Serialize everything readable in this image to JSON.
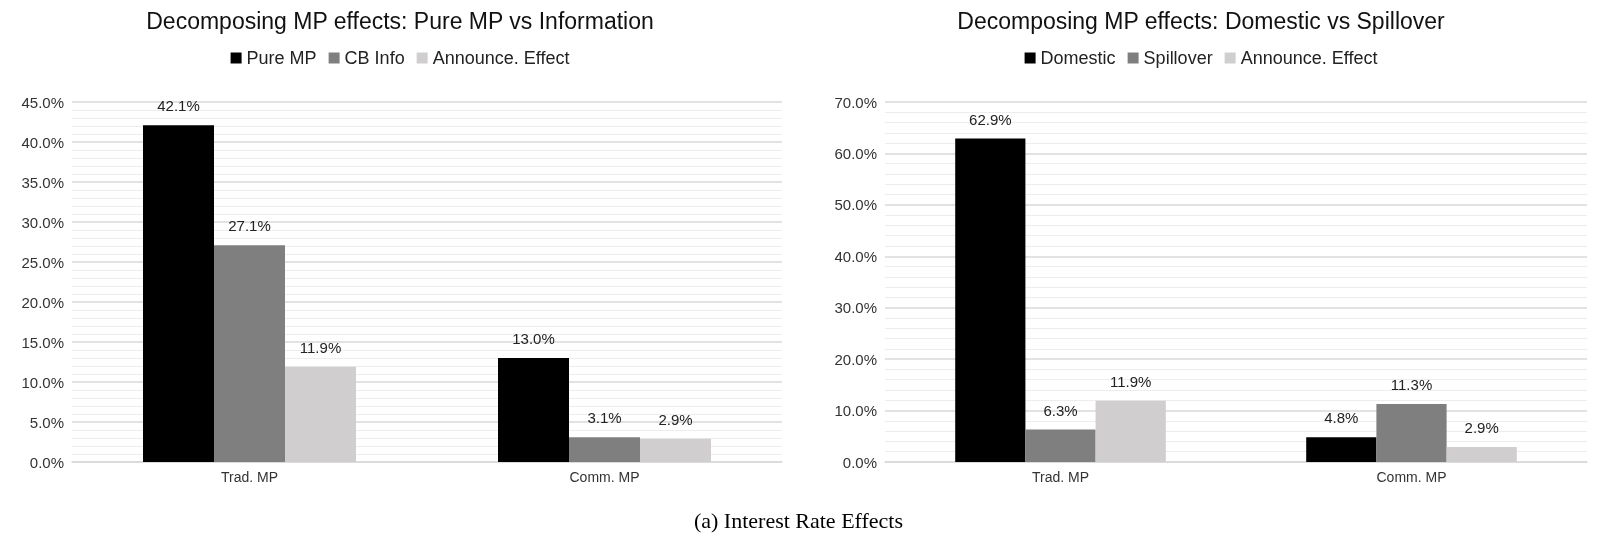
{
  "chart_data": [
    {
      "type": "bar",
      "title": "Decomposing MP effects: Pure MP vs Information",
      "categories": [
        "Trad. MP",
        "Comm. MP"
      ],
      "series": [
        {
          "name": "Pure MP",
          "color": "#000000",
          "values": [
            42.1,
            13.0
          ],
          "value_labels": [
            "42.1%",
            "13.0%"
          ]
        },
        {
          "name": "CB Info",
          "color": "#7f7f7f",
          "values": [
            27.1,
            3.1
          ],
          "value_labels": [
            "27.1%",
            "3.1%"
          ]
        },
        {
          "name": "Announce. Effect",
          "color": "#d0cece",
          "values": [
            11.9,
            2.9
          ],
          "value_labels": [
            "11.9%",
            "2.9%"
          ]
        }
      ],
      "ylim": [
        0,
        45
      ],
      "yticks": [
        {
          "value": 0,
          "label": "0.0%"
        },
        {
          "value": 5,
          "label": "5.0%"
        },
        {
          "value": 10,
          "label": "10.0%"
        },
        {
          "value": 15,
          "label": "15.0%"
        },
        {
          "value": 20,
          "label": "20.0%"
        },
        {
          "value": 25,
          "label": "25.0%"
        },
        {
          "value": 30,
          "label": "30.0%"
        },
        {
          "value": 35,
          "label": "35.0%"
        },
        {
          "value": 40,
          "label": "40.0%"
        },
        {
          "value": 45,
          "label": "45.0%"
        }
      ],
      "grid": "y",
      "legend": "top",
      "annotations": [
        "(a) Interest Rate Effects"
      ]
    },
    {
      "type": "bar",
      "title": "Decomposing MP effects: Domestic vs Spillover",
      "categories": [
        "Trad. MP",
        "Comm. MP"
      ],
      "series": [
        {
          "name": "Domestic",
          "color": "#000000",
          "values": [
            62.9,
            4.8
          ],
          "value_labels": [
            "62.9%",
            "4.8%"
          ]
        },
        {
          "name": "Spillover",
          "color": "#7f7f7f",
          "values": [
            6.3,
            11.3
          ],
          "value_labels": [
            "6.3%",
            "11.3%"
          ]
        },
        {
          "name": "Announce. Effect",
          "color": "#d0cece",
          "values": [
            11.9,
            2.9
          ],
          "value_labels": [
            "11.9%",
            "2.9%"
          ]
        }
      ],
      "ylim": [
        0,
        70
      ],
      "yticks": [
        {
          "value": 0,
          "label": "0.0%"
        },
        {
          "value": 10,
          "label": "10.0%"
        },
        {
          "value": 20,
          "label": "20.0%"
        },
        {
          "value": 30,
          "label": "30.0%"
        },
        {
          "value": 40,
          "label": "40.0%"
        },
        {
          "value": 50,
          "label": "50.0%"
        },
        {
          "value": 60,
          "label": "60.0%"
        },
        {
          "value": 70,
          "label": "70.0%"
        }
      ],
      "grid": "y",
      "legend": "top"
    }
  ]
}
